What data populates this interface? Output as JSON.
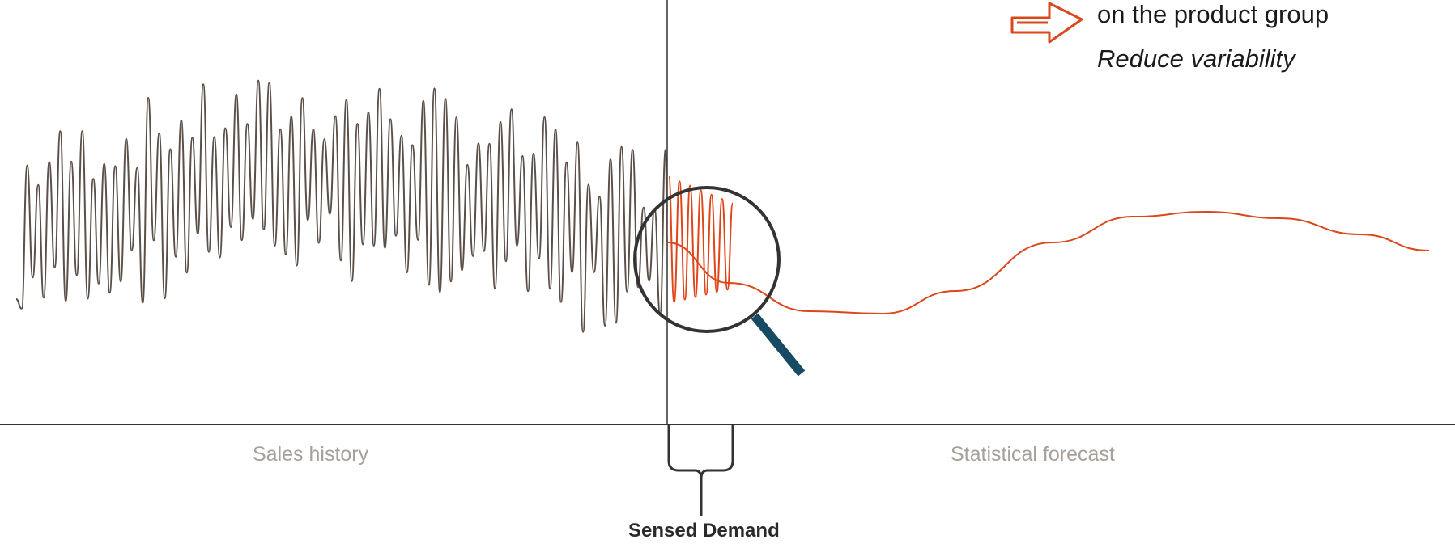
{
  "labels": {
    "sales_history": "Sales history",
    "statistical_forecast": "Statistical forecast",
    "sensed_demand": "Sensed Demand"
  },
  "notes": {
    "line1": "on the product group",
    "line2": "Reduce variability"
  },
  "colors": {
    "history_line": "#5b4f47",
    "forecast_line": "#d9471a",
    "sensed_line": "#e0451a",
    "magnifier_ring": "#333333",
    "magnifier_handle": "#164b61",
    "axis": "#333333",
    "section_label": "#a8a098",
    "arrow": "#d9471a"
  },
  "icons": {
    "magnifier": "magnifying-glass-icon",
    "arrow": "right-arrow-icon",
    "brace": "curly-brace"
  }
}
